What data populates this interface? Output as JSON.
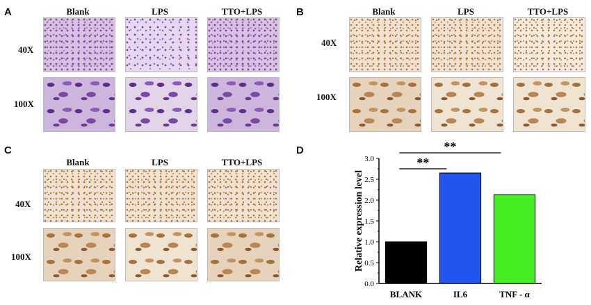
{
  "panels": {
    "A": {
      "letter": "A",
      "columns": [
        "Blank",
        "LPS",
        "TTO+LPS"
      ],
      "rows": [
        "40X",
        "100X"
      ]
    },
    "B": {
      "letter": "B",
      "columns": [
        "Blank",
        "LPS",
        "TTO+LPS"
      ],
      "rows": [
        "40X",
        "100X"
      ]
    },
    "C": {
      "letter": "C",
      "columns": [
        "Blank",
        "LPS",
        "TTO+LPS"
      ],
      "rows": [
        "40X",
        "100X"
      ]
    },
    "D": {
      "letter": "D"
    }
  },
  "chart_data": {
    "type": "bar",
    "categories": [
      "BLANK",
      "IL6",
      "TNF - α"
    ],
    "values": [
      1.0,
      2.65,
      2.13
    ],
    "colors": [
      "#000000",
      "#2255ee",
      "#44ee22"
    ],
    "ylabel": "Relative expression level",
    "xlabel": "",
    "ylim": [
      0,
      3.0
    ],
    "yticks": [
      "0.0",
      "0.5",
      "1.0",
      "1.5",
      "2.0",
      "2.5",
      "3.0"
    ],
    "significance": [
      {
        "label": "**",
        "from": "BLANK",
        "to": "IL6"
      },
      {
        "label": "**",
        "from": "BLANK",
        "to": "TNF - α"
      }
    ]
  }
}
